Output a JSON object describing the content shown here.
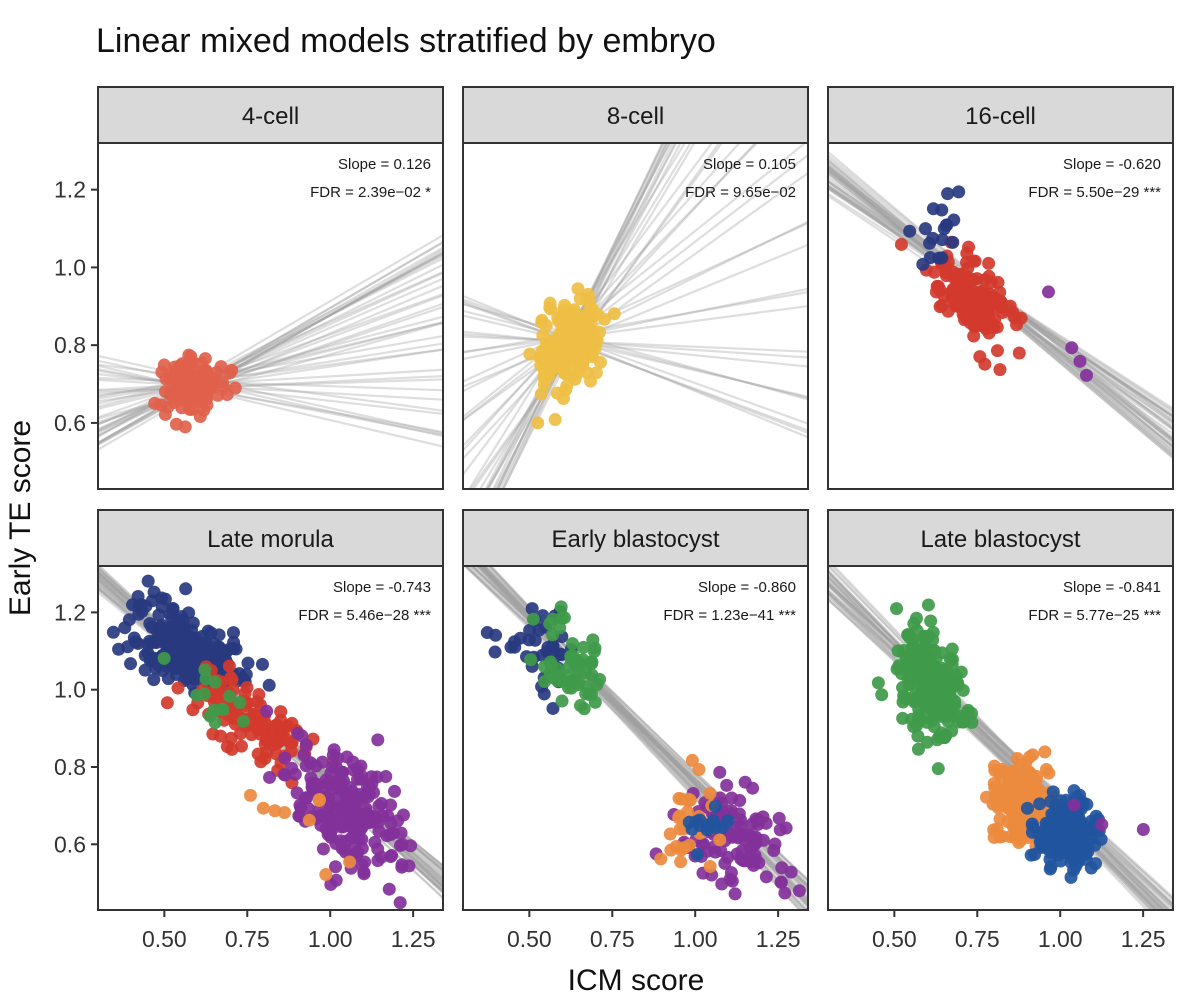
{
  "chart_data": {
    "type": "scatter",
    "title": "Linear mixed models stratified by embryo",
    "xlabel": "ICM score",
    "ylabel": "Early TE score",
    "xlim": [
      0.3,
      1.34
    ],
    "ylim": [
      0.43,
      1.32
    ],
    "xticks": [
      0.5,
      0.75,
      1.0,
      1.25
    ],
    "xtick_labels": [
      "0.50",
      "0.75",
      "1.00",
      "1.25"
    ],
    "yticks": [
      0.6,
      0.8,
      1.0,
      1.2
    ],
    "ytick_labels": [
      "0.6",
      "0.8",
      "1.0",
      "1.2"
    ],
    "grid": false,
    "legend": "none",
    "layout": "facet grid, 2 rows x 3 columns, shared axes",
    "colors": {
      "4-cell": "#e0614b",
      "8-cell": "#efbf45",
      "16-cell": "#d23a2d",
      "navy": "#283a80",
      "red": "#d23a2d",
      "green": "#3f9a4a",
      "orange": "#ec8a3e",
      "purple": "#83319a",
      "blue": "#22559e",
      "fit_line": "#a0a0a0",
      "strip_fill": "#d9d9d9"
    },
    "panels": [
      {
        "label": "4-cell",
        "slope_text": "Slope = 0.126",
        "fdr_text": "FDR = 2.39e-02 *",
        "slope": 0.126,
        "fdr": "2.39e-02",
        "significance": "*",
        "fit_lines": {
          "pivot": [
            0.6,
            0.7
          ],
          "slope_range": [
            -0.2,
            0.5
          ]
        },
        "clusters": [
          {
            "color": "4-cell",
            "n": 140,
            "cx": 0.59,
            "cy": 0.7,
            "sx": 0.045,
            "sy": 0.035,
            "rho": 0.2
          }
        ]
      },
      {
        "label": "8-cell",
        "slope_text": "Slope = 0.105",
        "fdr_text": "FDR = 9.65e-02",
        "slope": 0.105,
        "fdr": "9.65e-02",
        "significance": "",
        "fit_lines": {
          "pivot": [
            0.63,
            0.82
          ],
          "slope_range": [
            -0.35,
            1.8
          ]
        },
        "clusters": [
          {
            "color": "8-cell",
            "n": 170,
            "cx": 0.62,
            "cy": 0.8,
            "sx": 0.05,
            "sy": 0.06,
            "rho": 0.35
          }
        ]
      },
      {
        "label": "16-cell",
        "slope_text": "Slope = -0.620",
        "fdr_text": "FDR = 5.50e-29 ***",
        "slope": -0.62,
        "fdr": "5.50e-29",
        "significance": "***",
        "fit_lines": {
          "pivot": [
            0.75,
            0.95
          ],
          "slope_range": [
            -0.72,
            -0.55
          ]
        },
        "clusters": [
          {
            "color": "red",
            "n": 140,
            "cx": 0.73,
            "cy": 0.93,
            "sx": 0.06,
            "sy": 0.055,
            "rho": -0.5
          },
          {
            "color": "navy",
            "n": 18,
            "cx": 0.62,
            "cy": 1.1,
            "sx": 0.04,
            "sy": 0.05,
            "rho": -0.3
          },
          {
            "color": "purple",
            "n": 4,
            "cx": 1.02,
            "cy": 0.83,
            "sx": 0.04,
            "sy": 0.07,
            "rho": -0.8
          }
        ]
      },
      {
        "label": "Late morula",
        "slope_text": "Slope = -0.743",
        "fdr_text": "FDR = 5.46e-28 ***",
        "slope": -0.743,
        "fdr": "5.46e-28",
        "significance": "***",
        "fit_lines": {
          "pivot": [
            0.8,
            0.91
          ],
          "slope_range": [
            -0.8,
            -0.69
          ]
        },
        "clusters": [
          {
            "color": "navy",
            "n": 230,
            "cx": 0.56,
            "cy": 1.11,
            "sx": 0.08,
            "sy": 0.06,
            "rho": -0.5
          },
          {
            "color": "red",
            "n": 110,
            "cx": 0.75,
            "cy": 0.92,
            "sx": 0.09,
            "sy": 0.065,
            "rho": -0.6
          },
          {
            "color": "green",
            "n": 14,
            "cx": 0.67,
            "cy": 0.97,
            "sx": 0.06,
            "sy": 0.05,
            "rho": -0.3
          },
          {
            "color": "purple",
            "n": 200,
            "cx": 1.06,
            "cy": 0.68,
            "sx": 0.09,
            "sy": 0.08,
            "rho": -0.45
          },
          {
            "color": "orange",
            "n": 9,
            "cx": 0.88,
            "cy": 0.67,
            "sx": 0.12,
            "sy": 0.07,
            "rho": 0
          }
        ]
      },
      {
        "label": "Early blastocyst",
        "slope_text": "Slope = -0.860",
        "fdr_text": "FDR = 1.23e-41 ***",
        "slope": -0.86,
        "fdr": "1.23e-41",
        "significance": "***",
        "fit_lines": {
          "pivot": [
            0.8,
            0.93
          ],
          "slope_range": [
            -0.92,
            -0.8
          ]
        },
        "clusters": [
          {
            "color": "navy",
            "n": 40,
            "cx": 0.53,
            "cy": 1.1,
            "sx": 0.07,
            "sy": 0.06,
            "rho": -0.4
          },
          {
            "color": "green",
            "n": 60,
            "cx": 0.62,
            "cy": 1.07,
            "sx": 0.05,
            "sy": 0.06,
            "rho": -0.3
          },
          {
            "color": "purple",
            "n": 110,
            "cx": 1.12,
            "cy": 0.63,
            "sx": 0.09,
            "sy": 0.07,
            "rho": -0.4
          },
          {
            "color": "orange",
            "n": 30,
            "cx": 1.0,
            "cy": 0.65,
            "sx": 0.05,
            "sy": 0.05,
            "rho": 0
          },
          {
            "color": "blue",
            "n": 16,
            "cx": 1.03,
            "cy": 0.64,
            "sx": 0.04,
            "sy": 0.03,
            "rho": 0
          }
        ]
      },
      {
        "label": "Late blastocyst",
        "slope_text": "Slope = -0.841",
        "fdr_text": "FDR = 5.77e-25 ***",
        "slope": -0.841,
        "fdr": "5.77e-25",
        "significance": "***",
        "fit_lines": {
          "pivot": [
            0.8,
            0.86
          ],
          "slope_range": [
            -0.9,
            -0.78
          ]
        },
        "clusters": [
          {
            "color": "green",
            "n": 200,
            "cx": 0.6,
            "cy": 1.02,
            "sx": 0.05,
            "sy": 0.07,
            "rho": -0.3
          },
          {
            "color": "orange",
            "n": 170,
            "cx": 0.89,
            "cy": 0.7,
            "sx": 0.05,
            "sy": 0.05,
            "rho": -0.3
          },
          {
            "color": "blue",
            "n": 200,
            "cx": 1.02,
            "cy": 0.63,
            "sx": 0.05,
            "sy": 0.04,
            "rho": -0.2
          },
          {
            "color": "purple",
            "n": 3,
            "cx": 1.18,
            "cy": 0.66,
            "sx": 0.05,
            "sy": 0.04,
            "rho": 0
          }
        ]
      }
    ]
  }
}
